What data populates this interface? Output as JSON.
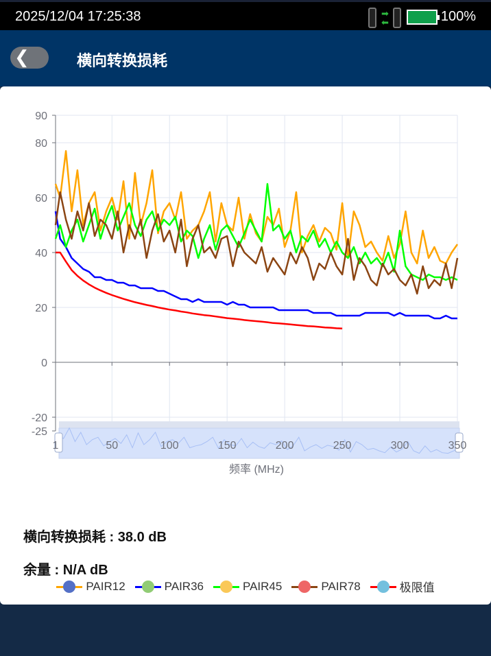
{
  "status": {
    "datetime": "2025/12/04 17:25:38",
    "battery": "100%",
    "battery_level": 1.0
  },
  "header": {
    "title": "横向转换损耗",
    "back_icon": "chevron-left-icon"
  },
  "chart_data": {
    "type": "line",
    "xlabel": "频率 (MHz)",
    "ylabel": "",
    "xlim": [
      1,
      350
    ],
    "ylim": [
      -25,
      90
    ],
    "x_ticks": [
      "1",
      "50",
      "100",
      "150",
      "200",
      "250",
      "300",
      "350"
    ],
    "y_ticks": [
      "90",
      "80",
      "60",
      "40",
      "20",
      "0",
      "-20",
      "-25"
    ],
    "grid": true,
    "legend_position": "bottom",
    "x": [
      1,
      5,
      10,
      15,
      20,
      25,
      30,
      35,
      40,
      45,
      50,
      55,
      60,
      65,
      70,
      75,
      80,
      85,
      90,
      95,
      100,
      105,
      110,
      115,
      120,
      125,
      130,
      135,
      140,
      145,
      150,
      155,
      160,
      165,
      170,
      175,
      180,
      185,
      190,
      195,
      200,
      205,
      210,
      215,
      220,
      225,
      230,
      235,
      240,
      245,
      250,
      255,
      260,
      265,
      270,
      275,
      280,
      285,
      290,
      295,
      300,
      305,
      310,
      315,
      320,
      325,
      330,
      335,
      340,
      345,
      350
    ],
    "series": [
      {
        "name": "PAIR12",
        "color": "#ffa500",
        "marker_color": "#5470c6",
        "values": [
          65,
          60,
          77,
          55,
          70,
          50,
          58,
          62,
          48,
          55,
          60,
          52,
          66,
          45,
          69,
          50,
          58,
          70,
          47,
          55,
          58,
          52,
          62,
          45,
          48,
          50,
          55,
          62,
          44,
          58,
          50,
          48,
          60,
          45,
          54,
          47,
          44,
          53,
          50,
          56,
          42,
          48,
          62,
          40,
          46,
          50,
          44,
          49,
          47,
          41,
          58,
          38,
          55,
          50,
          42,
          44,
          40,
          37,
          46,
          38,
          43,
          55,
          40,
          36,
          48,
          38,
          42,
          37,
          36,
          40,
          43
        ]
      },
      {
        "name": "PAIR36",
        "color": "#0000ff",
        "marker_color": "#91cc75",
        "values": [
          55,
          45,
          42,
          38,
          36,
          34,
          33,
          31,
          31,
          30,
          30,
          29,
          29,
          28,
          28,
          27,
          27,
          27,
          26,
          26,
          25,
          24,
          23,
          23,
          22,
          23,
          22,
          22,
          22,
          22,
          21,
          22,
          21,
          21,
          20,
          20,
          20,
          20,
          20,
          19,
          19,
          19,
          19,
          19,
          19,
          18,
          18,
          18,
          18,
          17,
          17,
          17,
          17,
          17,
          18,
          18,
          18,
          18,
          18,
          17,
          18,
          17,
          17,
          17,
          17,
          17,
          16,
          16,
          17,
          16,
          16
        ]
      },
      {
        "name": "PAIR45",
        "color": "#00ff00",
        "marker_color": "#fac858",
        "values": [
          45,
          50,
          42,
          48,
          52,
          44,
          50,
          56,
          45,
          52,
          57,
          48,
          53,
          58,
          50,
          46,
          52,
          55,
          48,
          52,
          50,
          53,
          44,
          48,
          46,
          38,
          45,
          50,
          41,
          48,
          50,
          46,
          42,
          47,
          52,
          48,
          44,
          65,
          48,
          50,
          45,
          48,
          40,
          46,
          44,
          48,
          42,
          45,
          40,
          44,
          40,
          38,
          42,
          36,
          40,
          36,
          38,
          35,
          40,
          33,
          48,
          35,
          32,
          31,
          30,
          32,
          31,
          31,
          30,
          31,
          30
        ]
      },
      {
        "name": "PAIR78",
        "color": "#8b4513",
        "marker_color": "#ee6666",
        "values": [
          50,
          62,
          52,
          45,
          55,
          48,
          58,
          46,
          52,
          50,
          45,
          55,
          40,
          50,
          45,
          52,
          38,
          48,
          54,
          44,
          48,
          40,
          52,
          35,
          45,
          50,
          40,
          42,
          38,
          45,
          46,
          35,
          44,
          40,
          38,
          36,
          42,
          33,
          38,
          35,
          32,
          40,
          36,
          42,
          38,
          30,
          36,
          34,
          40,
          35,
          32,
          45,
          30,
          38,
          35,
          30,
          28,
          36,
          32,
          34,
          30,
          28,
          32,
          25,
          35,
          27,
          30,
          28,
          36,
          27,
          38
        ]
      },
      {
        "name": "极限值",
        "color": "#ff0000",
        "marker_color": "#73c0de",
        "x": [
          1,
          5,
          10,
          15,
          20,
          25,
          30,
          35,
          40,
          45,
          50,
          55,
          60,
          65,
          70,
          75,
          80,
          85,
          90,
          95,
          100,
          105,
          110,
          115,
          120,
          125,
          130,
          135,
          140,
          145,
          150,
          155,
          160,
          165,
          170,
          175,
          180,
          185,
          190,
          195,
          200,
          205,
          210,
          215,
          220,
          225,
          230,
          235,
          240,
          245,
          250
        ],
        "values": [
          40,
          40,
          36.7,
          33.6,
          31.5,
          29.8,
          28.4,
          27.2,
          26.2,
          25.3,
          24.5,
          23.8,
          23.1,
          22.5,
          21.9,
          21.4,
          20.9,
          20.5,
          20.0,
          19.6,
          19.2,
          18.9,
          18.5,
          18.2,
          17.8,
          17.5,
          17.2,
          17.0,
          16.7,
          16.4,
          16.1,
          15.9,
          15.7,
          15.4,
          15.2,
          15.0,
          14.8,
          14.6,
          14.3,
          14.2,
          14.0,
          13.8,
          13.6,
          13.4,
          13.2,
          13.1,
          12.9,
          12.7,
          12.6,
          12.4,
          12.3
        ]
      }
    ],
    "datazoom_range": [
      1,
      350
    ]
  },
  "results": {
    "loss_label": "横向转换损耗 : 38.0 dB",
    "margin_label": "余量 : N/A dB"
  }
}
